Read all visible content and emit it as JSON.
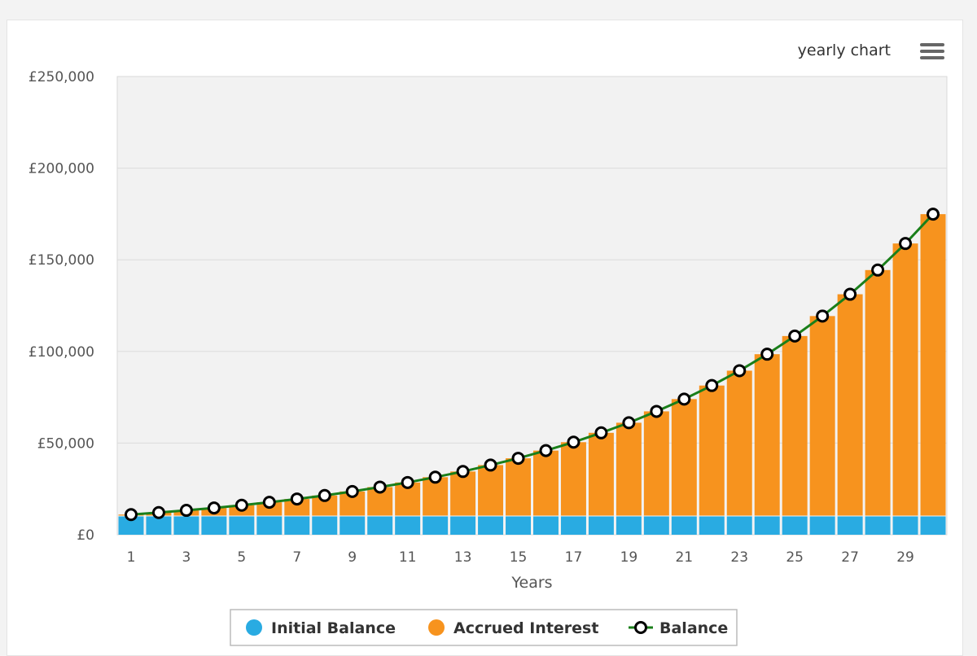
{
  "chart_data": {
    "type": "bar",
    "title": "",
    "menu_label": "yearly chart",
    "menu_icon": "hamburger-menu-icon",
    "xlabel": "Years",
    "ylabel": "",
    "ylim": [
      0,
      250000
    ],
    "yticks": [
      "£0",
      "£50,000",
      "£100,000",
      "£150,000",
      "£200,000",
      "£250,000"
    ],
    "ytick_values": [
      0,
      50000,
      100000,
      150000,
      200000,
      250000
    ],
    "xticks": [
      "1",
      "3",
      "5",
      "7",
      "9",
      "11",
      "13",
      "15",
      "17",
      "19",
      "21",
      "23",
      "25",
      "27",
      "29"
    ],
    "categories": [
      "1",
      "2",
      "3",
      "4",
      "5",
      "6",
      "7",
      "8",
      "9",
      "10",
      "11",
      "12",
      "13",
      "14",
      "15",
      "16",
      "17",
      "18",
      "19",
      "20",
      "21",
      "22",
      "23",
      "24",
      "25",
      "26",
      "27",
      "28",
      "29",
      "30"
    ],
    "grid": true,
    "stacked": true,
    "legend_position": "bottom-center",
    "series": [
      {
        "name": "Initial Balance",
        "type": "bar",
        "color": "#29abe2",
        "values": [
          10000,
          10000,
          10000,
          10000,
          10000,
          10000,
          10000,
          10000,
          10000,
          10000,
          10000,
          10000,
          10000,
          10000,
          10000,
          10000,
          10000,
          10000,
          10000,
          10000,
          10000,
          10000,
          10000,
          10000,
          10000,
          10000,
          10000,
          10000,
          10000,
          10000
        ]
      },
      {
        "name": "Accrued Interest",
        "type": "bar",
        "color": "#f7931e",
        "values": [
          1000,
          2100,
          3300,
          4600,
          6100,
          7700,
          9500,
          11400,
          13600,
          16000,
          18500,
          21400,
          24500,
          28000,
          31700,
          35900,
          40500,
          45600,
          51100,
          57300,
          64000,
          71400,
          79500,
          88500,
          98400,
          109300,
          121200,
          134400,
          148900,
          164900
        ]
      },
      {
        "name": "Balance",
        "type": "line",
        "color": "#1a7f1a",
        "marker": "circle",
        "values": [
          11000,
          12100,
          13300,
          14600,
          16100,
          17700,
          19500,
          21400,
          23600,
          26000,
          28500,
          31400,
          34500,
          38000,
          41700,
          45900,
          50500,
          55600,
          61100,
          67300,
          74000,
          81400,
          89500,
          98500,
          108400,
          119300,
          131200,
          144400,
          158900,
          174900
        ]
      }
    ]
  }
}
